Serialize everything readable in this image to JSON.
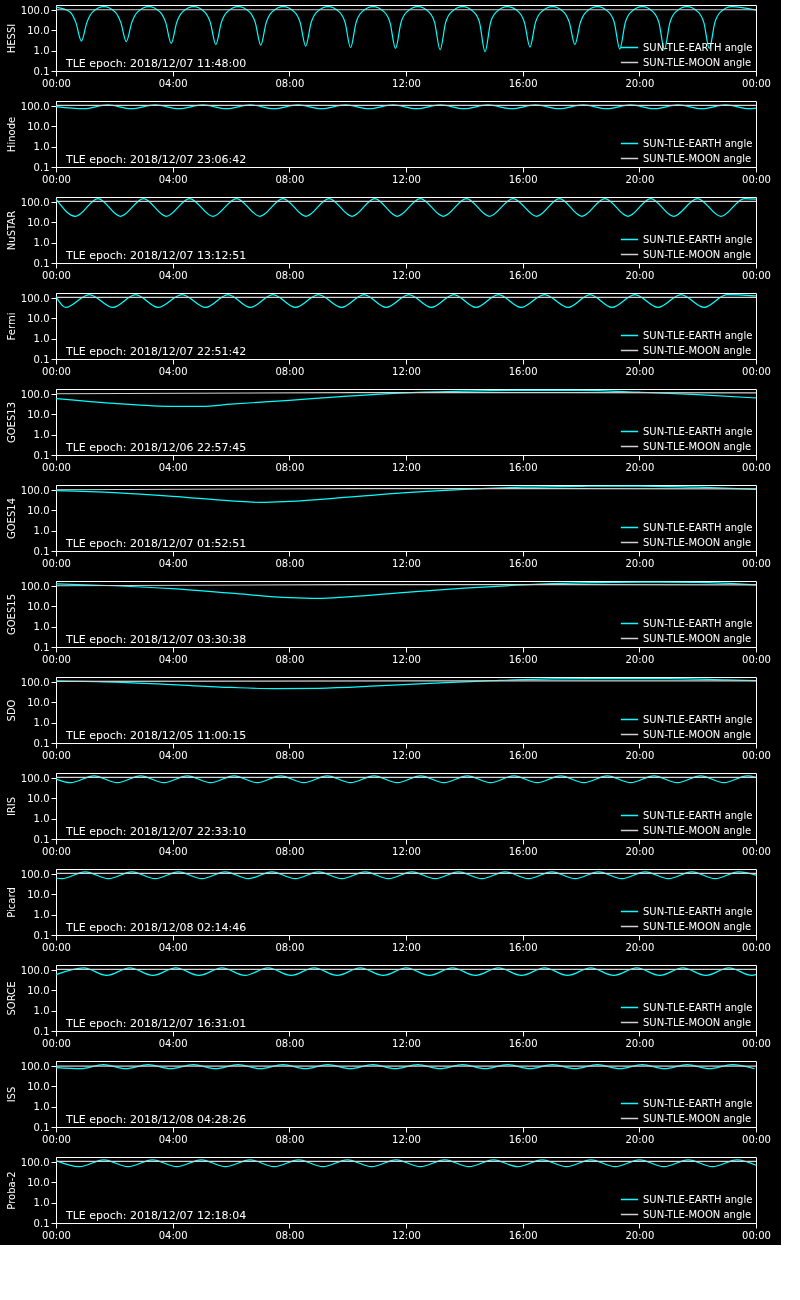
{
  "chart_data": [
    {
      "type": "line",
      "ylabel": "HESSI",
      "annotations": [
        "TLE epoch: 2018/12/07 11:48:00"
      ],
      "xlim": [
        0,
        24
      ],
      "xticks": [
        {
          "value": 0,
          "label": "00:00"
        },
        {
          "value": 4,
          "label": "04:00"
        },
        {
          "value": 8,
          "label": "08:00"
        },
        {
          "value": 12,
          "label": "12:00"
        },
        {
          "value": 16,
          "label": "16:00"
        },
        {
          "value": 20,
          "label": "20:00"
        },
        {
          "value": 24,
          "label": "00:00"
        }
      ],
      "ylim": [
        0.1,
        180
      ],
      "yticks": [
        {
          "value": 0.1,
          "label": "0.1"
        },
        {
          "value": 1,
          "label": "1.0"
        },
        {
          "value": 10,
          "label": "10.0"
        },
        {
          "value": 100,
          "label": "100.0"
        }
      ],
      "log": true,
      "grid": false,
      "legend": "bottom right",
      "series": [
        {
          "name": "SUN-TLE-EARTH angle",
          "color": "#00ffff",
          "x": [
            0,
            0.49,
            0.68,
            0.87,
            1.06,
            1.25,
            1.64,
            2.03,
            2.22,
            2.41,
            2.6,
            2.79,
            3.18,
            3.57,
            3.76,
            3.95,
            4.14,
            4.33,
            4.72,
            5.1,
            5.29,
            5.48,
            5.67,
            5.86,
            6.25,
            6.64,
            6.83,
            7.02,
            7.21,
            7.4,
            7.79,
            8.18,
            8.37,
            8.56,
            8.75,
            8.94,
            9.33,
            9.72,
            9.91,
            10.1,
            10.29,
            10.48,
            10.87,
            11.26,
            11.45,
            11.64,
            11.83,
            12.02,
            12.41,
            12.79,
            12.98,
            13.17,
            13.36,
            13.55,
            13.94,
            14.33,
            14.52,
            14.71,
            14.9,
            15.09,
            15.48,
            15.87,
            16.06,
            16.25,
            16.44,
            16.63,
            17.02,
            17.41,
            17.6,
            17.79,
            17.98,
            18.17,
            18.56,
            18.95,
            19.14,
            19.33,
            19.52,
            19.71,
            20.1,
            20.48,
            20.67,
            20.86,
            21.05,
            21.24,
            21.63,
            22.02,
            22.21,
            22.4,
            22.59,
            22.78,
            23.17,
            24
          ],
          "values": [
            140,
            80,
            25,
            3.0,
            25,
            80,
            150,
            80,
            25,
            2.8,
            25,
            80,
            150,
            80,
            25,
            2.3,
            25,
            80,
            150,
            80,
            25,
            2.0,
            25,
            80,
            150,
            80,
            25,
            1.9,
            25,
            80,
            150,
            80,
            25,
            1.7,
            25,
            80,
            150,
            80,
            25,
            1.4,
            25,
            80,
            150,
            80,
            25,
            1.3,
            25,
            80,
            150,
            80,
            25,
            1.1,
            25,
            80,
            150,
            80,
            25,
            0.9,
            25,
            80,
            150,
            80,
            25,
            1.5,
            25,
            80,
            150,
            80,
            25,
            2.0,
            25,
            80,
            150,
            80,
            25,
            1.2,
            25,
            80,
            150,
            80,
            25,
            1.2,
            25,
            80,
            150,
            80,
            25,
            1.3,
            25,
            80,
            150,
            100
          ]
        },
        {
          "name": "SUN-TLE-MOON angle",
          "color": "#d0d0d0",
          "x": [
            0,
            12,
            24
          ],
          "values": [
            105,
            105,
            105
          ]
        }
      ]
    },
    {
      "type": "line",
      "ylabel": "Hinode",
      "annotations": [
        "TLE epoch: 2018/12/07 23:06:42"
      ],
      "xlim": [
        0,
        24
      ],
      "xticks": [
        {
          "value": 0,
          "label": "00:00"
        },
        {
          "value": 4,
          "label": "04:00"
        },
        {
          "value": 8,
          "label": "08:00"
        },
        {
          "value": 12,
          "label": "12:00"
        },
        {
          "value": 16,
          "label": "16:00"
        },
        {
          "value": 20,
          "label": "20:00"
        },
        {
          "value": 24,
          "label": "00:00"
        }
      ],
      "ylim": [
        0.1,
        180
      ],
      "yticks": [
        {
          "value": 0.1,
          "label": "0.1"
        },
        {
          "value": 1,
          "label": "1.0"
        },
        {
          "value": 10,
          "label": "10.0"
        },
        {
          "value": 100,
          "label": "100.0"
        }
      ],
      "log": true,
      "grid": false,
      "legend": "bottom right",
      "series": [
        {
          "name": "SUN-TLE-EARTH angle",
          "color": "#00ffff",
          "x": [
            0,
            0.95,
            1.77,
            2.58,
            3.4,
            4.21,
            5.03,
            5.84,
            6.66,
            7.47,
            8.29,
            9.1,
            9.92,
            10.73,
            11.55,
            12.36,
            13.18,
            13.99,
            14.81,
            15.62,
            16.44,
            17.25,
            18.07,
            18.88,
            19.7,
            20.51,
            21.33,
            22.14,
            22.96,
            23.77,
            24
          ],
          "values": [
            95,
            75,
            115,
            75,
            115,
            75,
            115,
            75,
            115,
            75,
            115,
            75,
            115,
            75,
            115,
            75,
            115,
            75,
            115,
            75,
            115,
            75,
            115,
            75,
            115,
            75,
            115,
            75,
            115,
            75,
            80
          ]
        },
        {
          "name": "SUN-TLE-MOON angle",
          "color": "#d0d0d0",
          "x": [
            0,
            12,
            24
          ],
          "values": [
            110,
            110,
            110
          ]
        }
      ]
    },
    {
      "type": "line",
      "ylabel": "NuSTAR",
      "annotations": [
        "TLE epoch: 2018/12/07 13:12:51"
      ],
      "xlim": [
        0,
        24
      ],
      "xticks": [
        {
          "value": 0,
          "label": "00:00"
        },
        {
          "value": 4,
          "label": "04:00"
        },
        {
          "value": 8,
          "label": "08:00"
        },
        {
          "value": 12,
          "label": "12:00"
        },
        {
          "value": 16,
          "label": "16:00"
        },
        {
          "value": 20,
          "label": "20:00"
        },
        {
          "value": 24,
          "label": "00:00"
        }
      ],
      "ylim": [
        0.1,
        180
      ],
      "yticks": [
        {
          "value": 0.1,
          "label": "0.1"
        },
        {
          "value": 1,
          "label": "1.0"
        },
        {
          "value": 10,
          "label": "10.0"
        },
        {
          "value": 100,
          "label": "100.0"
        }
      ],
      "log": true,
      "grid": false,
      "legend": "bottom right",
      "series": [
        {
          "name": "SUN-TLE-EARTH angle",
          "color": "#00ffff",
          "x": [
            0,
            0.67,
            1.44,
            2.21,
            3.0,
            3.78,
            4.58,
            5.38,
            6.19,
            6.99,
            7.78,
            8.57,
            9.36,
            10.15,
            10.93,
            11.7,
            12.49,
            13.28,
            14.07,
            14.86,
            15.67,
            16.48,
            17.26,
            18.03,
            18.82,
            19.61,
            20.39,
            21.17,
            21.99,
            22.8,
            23.6,
            24
          ],
          "values": [
            140,
            20,
            150,
            20,
            150,
            20,
            150,
            20,
            150,
            20,
            150,
            20,
            150,
            20,
            150,
            20,
            150,
            20,
            150,
            20,
            150,
            20,
            150,
            20,
            150,
            20,
            150,
            20,
            150,
            20,
            150,
            140
          ]
        },
        {
          "name": "SUN-TLE-MOON angle",
          "color": "#d0d0d0",
          "x": [
            0,
            12,
            24
          ],
          "values": [
            110,
            110,
            110
          ]
        }
      ]
    },
    {
      "type": "line",
      "ylabel": "Fermi",
      "annotations": [
        "TLE epoch: 2018/12/07 22:51:42"
      ],
      "xlim": [
        0,
        24
      ],
      "xticks": [
        {
          "value": 0,
          "label": "00:00"
        },
        {
          "value": 4,
          "label": "04:00"
        },
        {
          "value": 8,
          "label": "08:00"
        },
        {
          "value": 12,
          "label": "12:00"
        },
        {
          "value": 16,
          "label": "16:00"
        },
        {
          "value": 20,
          "label": "20:00"
        },
        {
          "value": 24,
          "label": "00:00"
        }
      ],
      "ylim": [
        0.1,
        180
      ],
      "yticks": [
        {
          "value": 0.1,
          "label": "0.1"
        },
        {
          "value": 1,
          "label": "1.0"
        },
        {
          "value": 10,
          "label": "10.0"
        },
        {
          "value": 100,
          "label": "100.0"
        }
      ],
      "log": true,
      "grid": false,
      "legend": "bottom right",
      "series": [
        {
          "name": "SUN-TLE-EARTH angle",
          "color": "#00ffff",
          "x": [
            0,
            0.33,
            1.14,
            1.95,
            2.73,
            3.5,
            4.32,
            5.13,
            5.9,
            6.66,
            7.44,
            8.21,
            9.0,
            9.79,
            10.56,
            11.32,
            12.1,
            12.87,
            13.64,
            14.4,
            15.17,
            15.94,
            16.75,
            17.56,
            18.31,
            19.06,
            19.85,
            20.64,
            21.43,
            22.22,
            23.0,
            24
          ],
          "values": [
            120,
            35,
            150,
            35,
            150,
            35,
            150,
            35,
            150,
            35,
            150,
            35,
            150,
            35,
            150,
            35,
            150,
            35,
            150,
            35,
            150,
            35,
            150,
            35,
            150,
            35,
            150,
            35,
            150,
            35,
            150,
            130
          ]
        },
        {
          "name": "SUN-TLE-MOON angle",
          "color": "#d0d0d0",
          "x": [
            0,
            12,
            24
          ],
          "values": [
            110,
            110,
            110
          ]
        }
      ]
    },
    {
      "type": "line",
      "ylabel": "GOES13",
      "annotations": [
        "TLE epoch: 2018/12/06 22:57:45"
      ],
      "xlim": [
        0,
        24
      ],
      "xticks": [
        {
          "value": 0,
          "label": "00:00"
        },
        {
          "value": 4,
          "label": "04:00"
        },
        {
          "value": 8,
          "label": "08:00"
        },
        {
          "value": 12,
          "label": "12:00"
        },
        {
          "value": 16,
          "label": "16:00"
        },
        {
          "value": 20,
          "label": "20:00"
        },
        {
          "value": 24,
          "label": "00:00"
        }
      ],
      "ylim": [
        0.1,
        180
      ],
      "yticks": [
        {
          "value": 0.1,
          "label": "0.1"
        },
        {
          "value": 1,
          "label": "1.0"
        },
        {
          "value": 10,
          "label": "10.0"
        },
        {
          "value": 100,
          "label": "100.0"
        }
      ],
      "log": true,
      "grid": false,
      "legend": "bottom right",
      "series": [
        {
          "name": "SUN-TLE-EARTH angle",
          "color": "#00ffff",
          "x": [
            0,
            2,
            4,
            5,
            6,
            8,
            10,
            12,
            14,
            16,
            18,
            20,
            22,
            24
          ],
          "values": [
            60,
            35,
            25,
            25,
            32,
            50,
            80,
            115,
            140,
            155,
            155,
            125,
            95,
            65
          ]
        },
        {
          "name": "SUN-TLE-MOON angle",
          "color": "#d0d0d0",
          "x": [
            0,
            12,
            24
          ],
          "values": [
            105,
            120,
            115
          ]
        }
      ]
    },
    {
      "type": "line",
      "ylabel": "GOES14",
      "annotations": [
        "TLE epoch: 2018/12/07 01:52:51"
      ],
      "xlim": [
        0,
        24
      ],
      "xticks": [
        {
          "value": 0,
          "label": "00:00"
        },
        {
          "value": 4,
          "label": "04:00"
        },
        {
          "value": 8,
          "label": "08:00"
        },
        {
          "value": 12,
          "label": "12:00"
        },
        {
          "value": 16,
          "label": "16:00"
        },
        {
          "value": 20,
          "label": "20:00"
        },
        {
          "value": 24,
          "label": "00:00"
        }
      ],
      "ylim": [
        0.1,
        180
      ],
      "yticks": [
        {
          "value": 0.1,
          "label": "0.1"
        },
        {
          "value": 1,
          "label": "1.0"
        },
        {
          "value": 10,
          "label": "10.0"
        },
        {
          "value": 100,
          "label": "100.0"
        }
      ],
      "log": true,
      "grid": false,
      "legend": "bottom right",
      "series": [
        {
          "name": "SUN-TLE-EARTH angle",
          "color": "#00ffff",
          "x": [
            0,
            2,
            4,
            6,
            7,
            8,
            10,
            12,
            14,
            16,
            18,
            20,
            22,
            24
          ],
          "values": [
            95,
            75,
            50,
            30,
            25,
            28,
            45,
            75,
            110,
            140,
            155,
            160,
            140,
            110
          ]
        },
        {
          "name": "SUN-TLE-MOON angle",
          "color": "#d0d0d0",
          "x": [
            0,
            12,
            24
          ],
          "values": [
            105,
            120,
            115
          ]
        }
      ]
    },
    {
      "type": "line",
      "ylabel": "GOES15",
      "annotations": [
        "TLE epoch: 2018/12/07 03:30:38"
      ],
      "xlim": [
        0,
        24
      ],
      "xticks": [
        {
          "value": 0,
          "label": "00:00"
        },
        {
          "value": 4,
          "label": "04:00"
        },
        {
          "value": 8,
          "label": "08:00"
        },
        {
          "value": 12,
          "label": "12:00"
        },
        {
          "value": 16,
          "label": "16:00"
        },
        {
          "value": 20,
          "label": "20:00"
        },
        {
          "value": 24,
          "label": "00:00"
        }
      ],
      "ylim": [
        0.1,
        180
      ],
      "yticks": [
        {
          "value": 0.1,
          "label": "0.1"
        },
        {
          "value": 1,
          "label": "1.0"
        },
        {
          "value": 10,
          "label": "10.0"
        },
        {
          "value": 100,
          "label": "100.0"
        }
      ],
      "log": true,
      "grid": false,
      "legend": "bottom right",
      "series": [
        {
          "name": "SUN-TLE-EARTH angle",
          "color": "#00ffff",
          "x": [
            0,
            2,
            4,
            6,
            8,
            9,
            10,
            12,
            14,
            16,
            18,
            20,
            22,
            24
          ],
          "values": [
            130,
            105,
            75,
            45,
            27,
            25,
            30,
            50,
            80,
            115,
            145,
            160,
            155,
            115
          ]
        },
        {
          "name": "SUN-TLE-MOON angle",
          "color": "#d0d0d0",
          "x": [
            0,
            12,
            24
          ],
          "values": [
            105,
            120,
            115
          ]
        }
      ]
    },
    {
      "type": "line",
      "ylabel": "SDO",
      "annotations": [
        "TLE epoch: 2018/12/05 11:00:15"
      ],
      "xlim": [
        0,
        24
      ],
      "xticks": [
        {
          "value": 0,
          "label": "00:00"
        },
        {
          "value": 4,
          "label": "04:00"
        },
        {
          "value": 8,
          "label": "08:00"
        },
        {
          "value": 12,
          "label": "12:00"
        },
        {
          "value": 16,
          "label": "16:00"
        },
        {
          "value": 20,
          "label": "20:00"
        },
        {
          "value": 24,
          "label": "00:00"
        }
      ],
      "ylim": [
        0.1,
        180
      ],
      "yticks": [
        {
          "value": 0.1,
          "label": "0.1"
        },
        {
          "value": 1,
          "label": "1.0"
        },
        {
          "value": 10,
          "label": "10.0"
        },
        {
          "value": 100,
          "label": "100.0"
        }
      ],
      "log": true,
      "grid": false,
      "legend": "bottom right",
      "series": [
        {
          "name": "SUN-TLE-EARTH angle",
          "color": "#00ffff",
          "x": [
            0,
            2,
            4,
            6,
            7.5,
            9,
            11,
            13,
            15,
            17,
            19,
            21,
            23,
            24
          ],
          "values": [
            115,
            100,
            75,
            55,
            48,
            50,
            65,
            90,
            120,
            145,
            150,
            150,
            130,
            120
          ]
        },
        {
          "name": "SUN-TLE-MOON angle",
          "color": "#d0d0d0",
          "x": [
            0,
            12,
            24
          ],
          "values": [
            110,
            115,
            115
          ]
        }
      ]
    },
    {
      "type": "line",
      "ylabel": "IRIS",
      "annotations": [
        "TLE epoch: 2018/12/07 22:33:10"
      ],
      "xlim": [
        0,
        24
      ],
      "xticks": [
        {
          "value": 0,
          "label": "00:00"
        },
        {
          "value": 4,
          "label": "04:00"
        },
        {
          "value": 8,
          "label": "08:00"
        },
        {
          "value": 12,
          "label": "12:00"
        },
        {
          "value": 16,
          "label": "16:00"
        },
        {
          "value": 20,
          "label": "20:00"
        },
        {
          "value": 24,
          "label": "00:00"
        }
      ],
      "ylim": [
        0.1,
        180
      ],
      "yticks": [
        {
          "value": 0.1,
          "label": "0.1"
        },
        {
          "value": 1,
          "label": "1.0"
        },
        {
          "value": 10,
          "label": "10.0"
        },
        {
          "value": 100,
          "label": "100.0"
        }
      ],
      "log": true,
      "grid": false,
      "legend": "bottom right",
      "series": [
        {
          "name": "SUN-TLE-EARTH angle",
          "color": "#00ffff",
          "x": [
            0,
            0.5,
            1.3,
            2.1,
            2.9,
            3.7,
            4.5,
            5.3,
            6.1,
            6.9,
            7.7,
            8.5,
            9.3,
            10.1,
            10.9,
            11.7,
            12.5,
            13.3,
            14.1,
            14.9,
            15.7,
            16.5,
            17.3,
            18.1,
            18.9,
            19.7,
            20.5,
            21.3,
            22.1,
            22.9,
            23.7,
            24
          ],
          "values": [
            90,
            60,
            130,
            60,
            130,
            60,
            130,
            60,
            130,
            60,
            130,
            60,
            130,
            60,
            130,
            60,
            130,
            60,
            130,
            60,
            130,
            60,
            130,
            60,
            130,
            60,
            130,
            60,
            130,
            60,
            130,
            110
          ]
        },
        {
          "name": "SUN-TLE-MOON angle",
          "color": "#d0d0d0",
          "x": [
            0,
            12,
            24
          ],
          "values": [
            110,
            110,
            110
          ]
        }
      ]
    },
    {
      "type": "line",
      "ylabel": "Picard",
      "annotations": [
        "TLE epoch: 2018/12/08 02:14:46"
      ],
      "xlim": [
        0,
        24
      ],
      "xticks": [
        {
          "value": 0,
          "label": "00:00"
        },
        {
          "value": 4,
          "label": "04:00"
        },
        {
          "value": 8,
          "label": "08:00"
        },
        {
          "value": 12,
          "label": "12:00"
        },
        {
          "value": 16,
          "label": "16:00"
        },
        {
          "value": 20,
          "label": "20:00"
        },
        {
          "value": 24,
          "label": "00:00"
        }
      ],
      "ylim": [
        0.1,
        180
      ],
      "yticks": [
        {
          "value": 0.1,
          "label": "0.1"
        },
        {
          "value": 1,
          "label": "1.0"
        },
        {
          "value": 10,
          "label": "10.0"
        },
        {
          "value": 100,
          "label": "100.0"
        }
      ],
      "log": true,
      "grid": false,
      "legend": "bottom right",
      "series": [
        {
          "name": "SUN-TLE-EARTH angle",
          "color": "#00ffff",
          "x": [
            0,
            0.2,
            1.0,
            1.8,
            2.6,
            3.4,
            4.2,
            5.0,
            5.8,
            6.6,
            7.4,
            8.2,
            9.0,
            9.8,
            10.6,
            11.4,
            12.2,
            13.0,
            13.8,
            14.6,
            15.4,
            16.2,
            17.0,
            17.8,
            18.6,
            19.4,
            20.2,
            21.0,
            21.8,
            22.6,
            23.4,
            24
          ],
          "values": [
            65,
            60,
            130,
            60,
            130,
            60,
            130,
            60,
            130,
            60,
            130,
            60,
            130,
            60,
            130,
            60,
            130,
            60,
            130,
            60,
            130,
            60,
            130,
            60,
            130,
            60,
            130,
            60,
            130,
            60,
            130,
            90
          ]
        },
        {
          "name": "SUN-TLE-MOON angle",
          "color": "#d0d0d0",
          "x": [
            0,
            12,
            24
          ],
          "values": [
            110,
            110,
            110
          ]
        }
      ]
    },
    {
      "type": "line",
      "ylabel": "SORCE",
      "annotations": [
        "TLE epoch: 2018/12/07 16:31:01"
      ],
      "xlim": [
        0,
        24
      ],
      "xticks": [
        {
          "value": 0,
          "label": "00:00"
        },
        {
          "value": 4,
          "label": "04:00"
        },
        {
          "value": 8,
          "label": "08:00"
        },
        {
          "value": 12,
          "label": "12:00"
        },
        {
          "value": 16,
          "label": "16:00"
        },
        {
          "value": 20,
          "label": "20:00"
        },
        {
          "value": 24,
          "label": "00:00"
        }
      ],
      "ylim": [
        0.1,
        180
      ],
      "yticks": [
        {
          "value": 0.1,
          "label": "0.1"
        },
        {
          "value": 1,
          "label": "1.0"
        },
        {
          "value": 10,
          "label": "10.0"
        },
        {
          "value": 100,
          "label": "100.0"
        }
      ],
      "log": true,
      "grid": false,
      "legend": "bottom right",
      "series": [
        {
          "name": "SUN-TLE-EARTH angle",
          "color": "#00ffff",
          "x": [
            0,
            0.95,
            1.74,
            2.53,
            3.32,
            4.11,
            4.9,
            5.69,
            6.48,
            7.27,
            8.06,
            8.85,
            9.64,
            10.43,
            11.22,
            12.01,
            12.8,
            13.59,
            14.38,
            15.17,
            15.96,
            16.75,
            17.54,
            18.33,
            19.12,
            19.91,
            20.7,
            21.49,
            22.28,
            23.07,
            23.86,
            24
          ],
          "values": [
            60,
            130,
            55,
            130,
            55,
            130,
            55,
            130,
            55,
            130,
            55,
            130,
            55,
            130,
            55,
            130,
            55,
            130,
            55,
            130,
            55,
            130,
            55,
            130,
            55,
            130,
            55,
            130,
            55,
            130,
            55,
            60
          ]
        },
        {
          "name": "SUN-TLE-MOON angle",
          "color": "#d0d0d0",
          "x": [
            0,
            12,
            24
          ],
          "values": [
            110,
            110,
            110
          ]
        }
      ]
    },
    {
      "type": "line",
      "ylabel": "ISS",
      "annotations": [
        "TLE epoch: 2018/12/08 04:28:26"
      ],
      "xlim": [
        0,
        24
      ],
      "xticks": [
        {
          "value": 0,
          "label": "00:00"
        },
        {
          "value": 4,
          "label": "04:00"
        },
        {
          "value": 8,
          "label": "08:00"
        },
        {
          "value": 12,
          "label": "12:00"
        },
        {
          "value": 16,
          "label": "16:00"
        },
        {
          "value": 20,
          "label": "20:00"
        },
        {
          "value": 24,
          "label": "00:00"
        }
      ],
      "ylim": [
        0.1,
        180
      ],
      "yticks": [
        {
          "value": 0.1,
          "label": "0.1"
        },
        {
          "value": 1,
          "label": "1.0"
        },
        {
          "value": 10,
          "label": "10.0"
        },
        {
          "value": 100,
          "label": "100.0"
        }
      ],
      "log": true,
      "grid": false,
      "legend": "bottom right",
      "series": [
        {
          "name": "SUN-TLE-EARTH angle",
          "color": "#00ffff",
          "x": [
            0,
            0.85,
            1.62,
            2.39,
            3.16,
            3.93,
            4.7,
            5.47,
            6.24,
            7.01,
            7.78,
            8.55,
            9.32,
            10.09,
            10.86,
            11.63,
            12.4,
            13.17,
            13.94,
            14.71,
            15.48,
            16.25,
            17.02,
            17.79,
            18.56,
            19.33,
            20.1,
            20.87,
            21.64,
            22.41,
            23.18,
            23.95
          ],
          "values": [
            85,
            75,
            120,
            75,
            120,
            75,
            120,
            75,
            120,
            75,
            120,
            75,
            120,
            75,
            120,
            75,
            120,
            75,
            120,
            75,
            120,
            75,
            120,
            75,
            120,
            75,
            120,
            75,
            120,
            75,
            120,
            75
          ]
        },
        {
          "name": "SUN-TLE-MOON angle",
          "color": "#d0d0d0",
          "x": [
            0,
            12,
            24
          ],
          "values": [
            100,
            100,
            100
          ]
        }
      ]
    },
    {
      "type": "line",
      "ylabel": "Proba-2",
      "annotations": [
        "TLE epoch: 2018/12/07 12:18:04"
      ],
      "xlim": [
        0,
        24
      ],
      "xticks": [
        {
          "value": 0,
          "label": "00:00"
        },
        {
          "value": 4,
          "label": "04:00"
        },
        {
          "value": 8,
          "label": "08:00"
        },
        {
          "value": 12,
          "label": "12:00"
        },
        {
          "value": 16,
          "label": "16:00"
        },
        {
          "value": 20,
          "label": "20:00"
        },
        {
          "value": 24,
          "label": "00:00"
        }
      ],
      "ylim": [
        0.1,
        180
      ],
      "yticks": [
        {
          "value": 0.1,
          "label": "0.1"
        },
        {
          "value": 1,
          "label": "1.0"
        },
        {
          "value": 10,
          "label": "10.0"
        },
        {
          "value": 100,
          "label": "100.0"
        }
      ],
      "log": true,
      "grid": false,
      "legend": "bottom right",
      "series": [
        {
          "name": "SUN-TLE-EARTH angle",
          "color": "#00ffff",
          "x": [
            0,
            0.8,
            1.64,
            2.47,
            3.31,
            4.14,
            4.98,
            5.81,
            6.65,
            7.48,
            8.32,
            9.15,
            9.99,
            10.82,
            11.66,
            12.49,
            13.33,
            14.16,
            15.0,
            15.83,
            16.67,
            17.5,
            18.34,
            19.17,
            20.01,
            20.84,
            21.68,
            22.51,
            23.35,
            24
          ],
          "values": [
            120,
            60,
            130,
            60,
            130,
            60,
            130,
            60,
            130,
            60,
            130,
            60,
            130,
            60,
            130,
            60,
            130,
            60,
            130,
            60,
            130,
            60,
            130,
            60,
            130,
            60,
            130,
            60,
            130,
            70
          ]
        },
        {
          "name": "SUN-TLE-MOON angle",
          "color": "#d0d0d0",
          "x": [
            0,
            12,
            24
          ],
          "values": [
            110,
            110,
            110
          ]
        }
      ]
    }
  ]
}
